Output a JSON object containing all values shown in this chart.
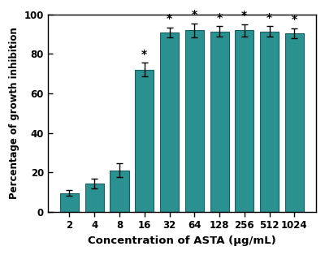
{
  "categories": [
    "2",
    "4",
    "8",
    "16",
    "32",
    "64",
    "128",
    "256",
    "512",
    "1024"
  ],
  "values": [
    9.5,
    14.5,
    21.0,
    72.0,
    91.0,
    92.0,
    91.5,
    92.0,
    91.5,
    90.5
  ],
  "errors": [
    1.5,
    2.5,
    3.5,
    3.5,
    2.5,
    3.5,
    2.5,
    3.0,
    2.5,
    2.5
  ],
  "significant": [
    false,
    false,
    false,
    true,
    true,
    true,
    true,
    true,
    true,
    true
  ],
  "bar_color": "#2a9090",
  "edge_color": "#1a6060",
  "xlabel": "Concentration of ASTA (μg/mL)",
  "ylabel": "Percentage of growth inhibition",
  "ylim": [
    0,
    100
  ],
  "yticks": [
    0,
    20,
    40,
    60,
    80,
    100
  ],
  "bar_width": 0.75,
  "star_fontsize": 10,
  "tick_fontsize": 8.5,
  "xlabel_fontsize": 9.5,
  "ylabel_fontsize": 8.5,
  "fig_bg": "#ffffff"
}
